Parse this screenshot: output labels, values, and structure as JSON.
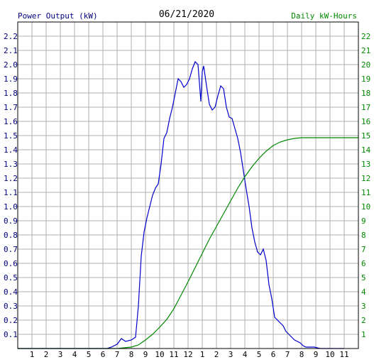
{
  "chart_data": {
    "type": "line",
    "title": "06/21/2020",
    "left_axis_label": "Power Output (kW)",
    "right_axis_label": "Daily kW-Hours",
    "x_ticks": [
      "1",
      "2",
      "3",
      "4",
      "5",
      "6",
      "7",
      "8",
      "9",
      "10",
      "11",
      "12",
      "1",
      "2",
      "3",
      "4",
      "5",
      "6",
      "7",
      "8",
      "9",
      "10",
      "11"
    ],
    "x_range_hours": [
      0,
      24
    ],
    "y_left_range": [
      0,
      2.3
    ],
    "y_left_ticks": [
      "0.1",
      "0.2",
      "0.3",
      "0.4",
      "0.5",
      "0.6",
      "0.7",
      "0.8",
      "0.9",
      "1.0",
      "1.1",
      "1.2",
      "1.3",
      "1.4",
      "1.5",
      "1.6",
      "1.7",
      "1.8",
      "1.9",
      "2.0",
      "2.1",
      "2.2"
    ],
    "y_right_range": [
      0,
      23
    ],
    "y_right_ticks": [
      "1",
      "2",
      "3",
      "4",
      "5",
      "6",
      "7",
      "8",
      "9",
      "10",
      "11",
      "12",
      "13",
      "14",
      "15",
      "16",
      "17",
      "18",
      "19",
      "20",
      "21",
      "22"
    ],
    "grid": true,
    "colors": {
      "power": "#0000cc",
      "energy": "#008800",
      "grid": "#b0b0b0",
      "left_axis": "#000080",
      "right_axis": "#008800"
    },
    "series": [
      {
        "axis": "left",
        "x": [
          0,
          6,
          6.3,
          6.6,
          7,
          7.3,
          7.6,
          8,
          8.3,
          8.5,
          8.7,
          8.9,
          9.1,
          9.3,
          9.5,
          9.7,
          9.9,
          10.1,
          10.3,
          10.5,
          10.7,
          10.9,
          11.1,
          11.3,
          11.5,
          11.7,
          11.9,
          12.1,
          12.3,
          12.5,
          12.7,
          12.9,
          13.0,
          13.1,
          13.3,
          13.5,
          13.7,
          13.9,
          14.1,
          14.3,
          14.5,
          14.7,
          14.9,
          15.1,
          15.3,
          15.5,
          15.7,
          15.9,
          16.1,
          16.3,
          16.5,
          16.7,
          16.9,
          17.1,
          17.3,
          17.5,
          17.7,
          17.9,
          18.1,
          18.3,
          18.5,
          18.7,
          18.9,
          19.1,
          19.3,
          19.5,
          19.7,
          19.9,
          20.1,
          20.3,
          20.5,
          20.7,
          20.9,
          21.1,
          21.3,
          21.5,
          21.7,
          21.9,
          22.2,
          22.5,
          23
        ],
        "y": [
          0,
          0,
          0,
          0.01,
          0.03,
          0.07,
          0.05,
          0.06,
          0.08,
          0.3,
          0.65,
          0.82,
          0.92,
          1.0,
          1.08,
          1.13,
          1.16,
          1.3,
          1.48,
          1.52,
          1.62,
          1.7,
          1.8,
          1.9,
          1.88,
          1.84,
          1.86,
          1.9,
          1.97,
          2.02,
          2.0,
          1.74,
          1.95,
          1.99,
          1.85,
          1.72,
          1.68,
          1.7,
          1.78,
          1.85,
          1.83,
          1.7,
          1.63,
          1.62,
          1.55,
          1.48,
          1.38,
          1.25,
          1.12,
          1.0,
          0.85,
          0.75,
          0.68,
          0.66,
          0.7,
          0.62,
          0.45,
          0.35,
          0.22,
          0.2,
          0.18,
          0.16,
          0.12,
          0.1,
          0.08,
          0.06,
          0.05,
          0.04,
          0.02,
          0.01,
          0.01,
          0.01,
          0.01,
          0.005,
          0,
          0,
          0,
          0,
          0,
          0,
          0
        ]
      },
      {
        "axis": "right",
        "x": [
          0,
          7,
          8,
          8.5,
          9,
          9.5,
          10,
          10.5,
          11,
          11.5,
          12,
          12.5,
          13,
          13.5,
          14,
          14.5,
          15,
          15.5,
          16,
          16.5,
          17,
          17.5,
          18,
          18.5,
          19,
          19.5,
          20,
          20.5,
          21,
          22,
          23,
          24
        ],
        "y": [
          0,
          0,
          0.1,
          0.25,
          0.6,
          1.0,
          1.5,
          2.05,
          2.8,
          3.75,
          4.7,
          5.7,
          6.7,
          7.7,
          8.6,
          9.5,
          10.4,
          11.3,
          12.1,
          12.8,
          13.4,
          13.9,
          14.3,
          14.55,
          14.7,
          14.8,
          14.85,
          14.85,
          14.85,
          14.85,
          14.85,
          14.85
        ]
      }
    ]
  }
}
